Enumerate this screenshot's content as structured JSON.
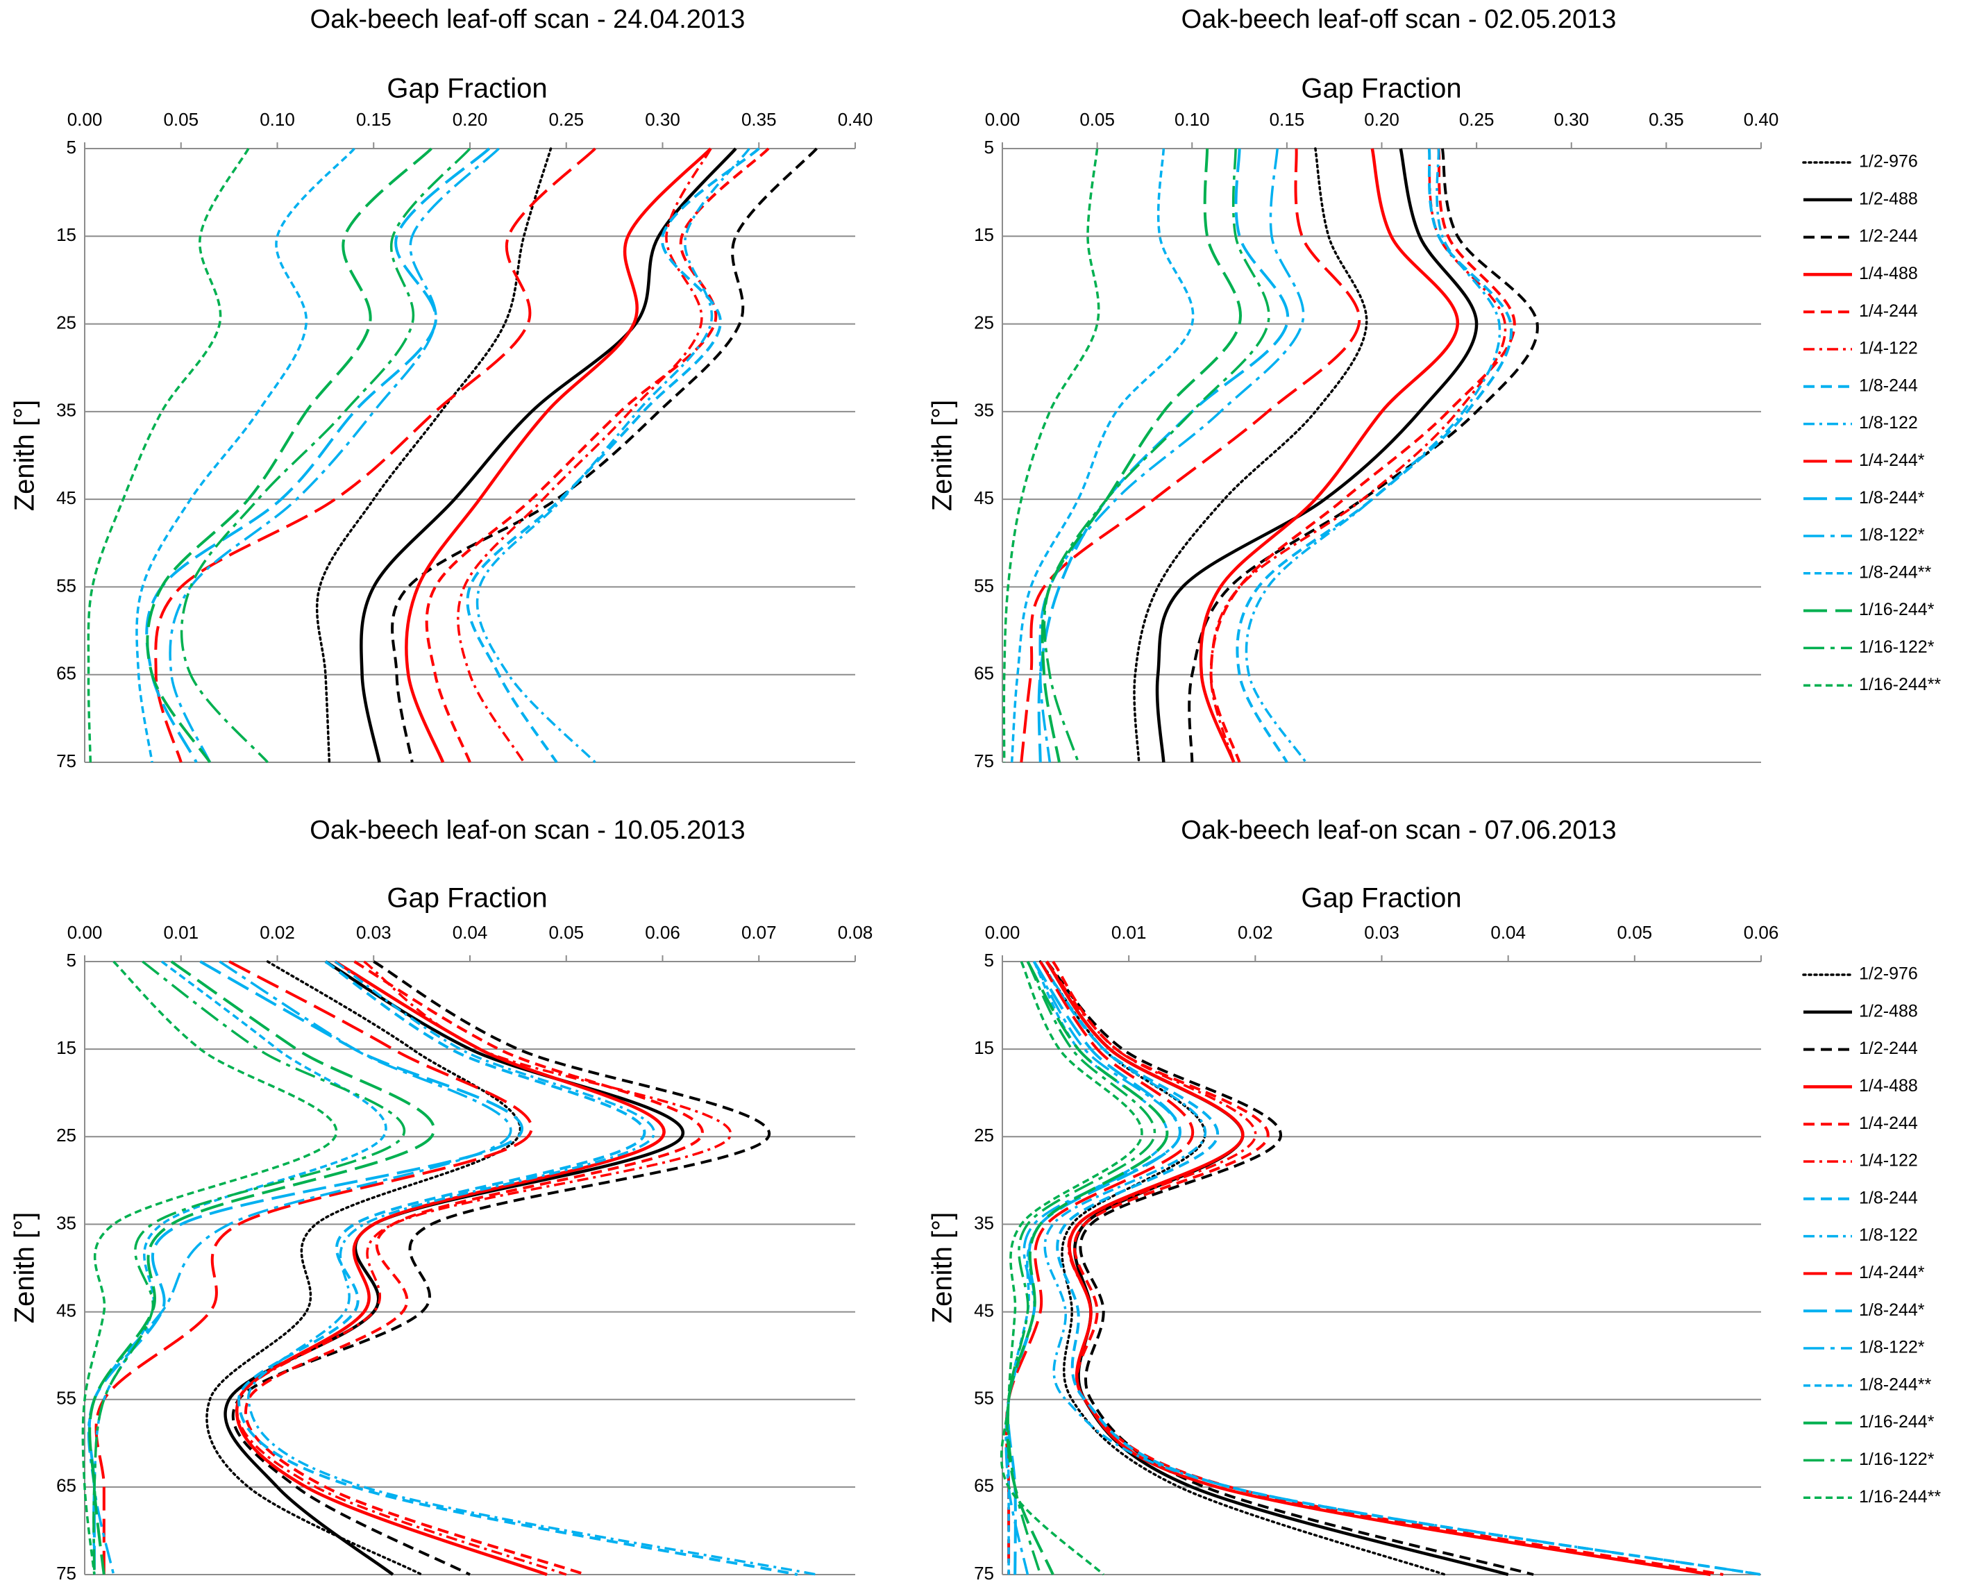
{
  "colors": {
    "black": "#000000",
    "red": "#ff0000",
    "blue": "#00b0f0",
    "green": "#00b050",
    "grid": "#8c8c8c"
  },
  "legend_entries": [
    {
      "name": "1/2-976",
      "color": "#000000",
      "dash": "dot"
    },
    {
      "name": "1/2-488",
      "color": "#000000",
      "dash": "solid"
    },
    {
      "name": "1/2-244",
      "color": "#000000",
      "dash": "dash"
    },
    {
      "name": "1/4-488",
      "color": "#ff0000",
      "dash": "solid"
    },
    {
      "name": "1/4-244",
      "color": "#ff0000",
      "dash": "dash"
    },
    {
      "name": "1/4-122",
      "color": "#ff0000",
      "dash": "dashdot"
    },
    {
      "name": "1/8-244",
      "color": "#00b0f0",
      "dash": "dash"
    },
    {
      "name": "1/8-122",
      "color": "#00b0f0",
      "dash": "dashdot"
    },
    {
      "name": "1/4-244*",
      "color": "#ff0000",
      "dash": "longdash"
    },
    {
      "name": "1/8-244*",
      "color": "#00b0f0",
      "dash": "longdash"
    },
    {
      "name": "1/8-122*",
      "color": "#00b0f0",
      "dash": "longdashdot"
    },
    {
      "name": "1/8-244**",
      "color": "#00b0f0",
      "dash": "shortdash"
    },
    {
      "name": "1/16-244*",
      "color": "#00b050",
      "dash": "longdash"
    },
    {
      "name": "1/16-122*",
      "color": "#00b050",
      "dash": "longdashdot"
    },
    {
      "name": "1/16-244**",
      "color": "#00b050",
      "dash": "shortdash"
    }
  ],
  "chart_data": [
    {
      "type": "line",
      "title": "Oak-beech leaf-off scan - 24.04.2013",
      "xlabel": "Gap Fraction",
      "ylabel": "Zenith [°]",
      "xlim": [
        0,
        0.4
      ],
      "ylim": [
        5,
        75
      ],
      "x_ticks": [
        "0.00",
        "0.05",
        "0.10",
        "0.15",
        "0.20",
        "0.25",
        "0.30",
        "0.35",
        "0.40"
      ],
      "y_ticks": [
        "5",
        "15",
        "25",
        "35",
        "45",
        "55",
        "65",
        "75"
      ],
      "legend": "none",
      "grid": "horizontal",
      "zenith": [
        5,
        15,
        25,
        35,
        45,
        55,
        65,
        75
      ],
      "series": [
        {
          "name": "1/2-976",
          "values": [
            0.242,
            0.228,
            0.218,
            0.185,
            0.15,
            0.122,
            0.125,
            0.127
          ]
        },
        {
          "name": "1/2-488",
          "values": [
            0.338,
            0.298,
            0.286,
            0.232,
            0.192,
            0.15,
            0.144,
            0.153
          ]
        },
        {
          "name": "1/2-244",
          "values": [
            0.38,
            0.338,
            0.34,
            0.298,
            0.245,
            0.168,
            0.162,
            0.17
          ]
        },
        {
          "name": "1/4-488",
          "values": [
            0.325,
            0.282,
            0.285,
            0.24,
            0.205,
            0.173,
            0.168,
            0.186
          ]
        },
        {
          "name": "1/4-244",
          "values": [
            0.355,
            0.31,
            0.327,
            0.278,
            0.232,
            0.182,
            0.182,
            0.2
          ]
        },
        {
          "name": "1/4-122",
          "values": [
            0.325,
            0.302,
            0.32,
            0.283,
            0.238,
            0.197,
            0.2,
            0.228
          ]
        },
        {
          "name": "1/8-244",
          "values": [
            0.35,
            0.3,
            0.33,
            0.29,
            0.247,
            0.2,
            0.215,
            0.245
          ]
        },
        {
          "name": "1/8-122",
          "values": [
            0.345,
            0.312,
            0.325,
            0.287,
            0.248,
            0.205,
            0.22,
            0.265
          ]
        },
        {
          "name": "1/4-244*",
          "values": [
            0.265,
            0.22,
            0.23,
            0.182,
            0.13,
            0.05,
            0.037,
            0.05
          ]
        },
        {
          "name": "1/8-244*",
          "values": [
            0.21,
            0.162,
            0.182,
            0.14,
            0.102,
            0.04,
            0.035,
            0.058
          ]
        },
        {
          "name": "1/8-122*",
          "values": [
            0.215,
            0.17,
            0.182,
            0.15,
            0.11,
            0.055,
            0.045,
            0.065
          ]
        },
        {
          "name": "1/8-244**",
          "values": [
            0.14,
            0.1,
            0.115,
            0.09,
            0.055,
            0.03,
            0.028,
            0.035
          ]
        },
        {
          "name": "1/16-244*",
          "values": [
            0.18,
            0.135,
            0.148,
            0.115,
            0.085,
            0.04,
            0.035,
            0.065
          ]
        },
        {
          "name": "1/16-122*",
          "values": [
            0.2,
            0.16,
            0.17,
            0.135,
            0.09,
            0.055,
            0.055,
            0.095
          ]
        },
        {
          "name": "1/16-244**",
          "values": [
            0.085,
            0.06,
            0.07,
            0.04,
            0.02,
            0.004,
            0.002,
            0.003
          ]
        }
      ]
    },
    {
      "type": "line",
      "title": "Oak-beech leaf-off scan - 02.05.2013",
      "xlabel": "Gap Fraction",
      "ylabel": "Zenith [°]",
      "xlim": [
        0,
        0.4
      ],
      "ylim": [
        5,
        75
      ],
      "x_ticks": [
        "0.00",
        "0.05",
        "0.10",
        "0.15",
        "0.20",
        "0.25",
        "0.30",
        "0.35",
        "0.40"
      ],
      "y_ticks": [
        "5",
        "15",
        "25",
        "35",
        "45",
        "55",
        "65",
        "75"
      ],
      "legend": "right",
      "grid": "horizontal",
      "zenith": [
        5,
        15,
        25,
        35,
        45,
        55,
        65,
        75
      ],
      "series": [
        {
          "name": "1/2-976",
          "values": [
            0.165,
            0.172,
            0.192,
            0.165,
            0.117,
            0.082,
            0.07,
            0.072
          ]
        },
        {
          "name": "1/2-488",
          "values": [
            0.21,
            0.22,
            0.25,
            0.22,
            0.17,
            0.095,
            0.082,
            0.085
          ]
        },
        {
          "name": "1/2-244",
          "values": [
            0.232,
            0.24,
            0.282,
            0.25,
            0.19,
            0.12,
            0.1,
            0.1
          ]
        },
        {
          "name": "1/4-488",
          "values": [
            0.195,
            0.205,
            0.24,
            0.2,
            0.165,
            0.115,
            0.105,
            0.122
          ]
        },
        {
          "name": "1/4-244",
          "values": [
            0.23,
            0.235,
            0.27,
            0.235,
            0.18,
            0.125,
            0.11,
            0.125
          ]
        },
        {
          "name": "1/4-122",
          "values": [
            0.225,
            0.23,
            0.265,
            0.24,
            0.19,
            0.125,
            0.11,
            0.122
          ]
        },
        {
          "name": "1/8-244",
          "values": [
            0.225,
            0.23,
            0.268,
            0.245,
            0.195,
            0.135,
            0.125,
            0.15
          ]
        },
        {
          "name": "1/8-122",
          "values": [
            0.23,
            0.232,
            0.262,
            0.243,
            0.195,
            0.14,
            0.13,
            0.16
          ]
        },
        {
          "name": "1/4-244*",
          "values": [
            0.155,
            0.158,
            0.188,
            0.14,
            0.08,
            0.022,
            0.015,
            0.01
          ]
        },
        {
          "name": "1/8-244*",
          "values": [
            0.125,
            0.125,
            0.15,
            0.1,
            0.055,
            0.03,
            0.02,
            0.02
          ]
        },
        {
          "name": "1/8-122*",
          "values": [
            0.145,
            0.142,
            0.158,
            0.115,
            0.06,
            0.025,
            0.02,
            0.025
          ]
        },
        {
          "name": "1/8-244**",
          "values": [
            0.085,
            0.083,
            0.1,
            0.06,
            0.04,
            0.015,
            0.008,
            0.005
          ]
        },
        {
          "name": "1/16-244*",
          "values": [
            0.108,
            0.108,
            0.125,
            0.085,
            0.055,
            0.025,
            0.022,
            0.03
          ]
        },
        {
          "name": "1/16-122*",
          "values": [
            0.123,
            0.123,
            0.14,
            0.1,
            0.055,
            0.025,
            0.025,
            0.04
          ]
        },
        {
          "name": "1/16-244**",
          "values": [
            0.05,
            0.045,
            0.05,
            0.025,
            0.01,
            0.003,
            0.001,
            0.001
          ]
        }
      ]
    },
    {
      "type": "line",
      "title": "Oak-beech leaf-on scan - 10.05.2013",
      "xlabel": "Gap Fraction",
      "ylabel": "Zenith [°]",
      "xlim": [
        0,
        0.08
      ],
      "ylim": [
        5,
        75
      ],
      "x_ticks": [
        "0.00",
        "0.01",
        "0.02",
        "0.03",
        "0.04",
        "0.05",
        "0.06",
        "0.07",
        "0.08"
      ],
      "y_ticks": [
        "5",
        "15",
        "25",
        "35",
        "45",
        "55",
        "65",
        "75"
      ],
      "legend": "none",
      "grid": "horizontal",
      "zenith": [
        5,
        15,
        25,
        35,
        45,
        55,
        65,
        75
      ],
      "series": [
        {
          "name": "1/2-976",
          "values": [
            0.019,
            0.034,
            0.045,
            0.024,
            0.023,
            0.013,
            0.017,
            0.035
          ]
        },
        {
          "name": "1/2-488",
          "values": [
            0.025,
            0.04,
            0.062,
            0.03,
            0.03,
            0.015,
            0.02,
            0.032
          ]
        },
        {
          "name": "1/2-244",
          "values": [
            0.03,
            0.045,
            0.071,
            0.036,
            0.035,
            0.016,
            0.022,
            0.04
          ]
        },
        {
          "name": "1/4-488",
          "values": [
            0.026,
            0.041,
            0.06,
            0.03,
            0.029,
            0.016,
            0.023,
            0.048
          ]
        },
        {
          "name": "1/4-244",
          "values": [
            0.028,
            0.043,
            0.064,
            0.032,
            0.033,
            0.017,
            0.025,
            0.052
          ]
        },
        {
          "name": "1/4-122",
          "values": [
            0.029,
            0.041,
            0.067,
            0.032,
            0.03,
            0.016,
            0.024,
            0.05
          ]
        },
        {
          "name": "1/8-244",
          "values": [
            0.025,
            0.038,
            0.058,
            0.028,
            0.028,
            0.016,
            0.028,
            0.074
          ]
        },
        {
          "name": "1/8-122",
          "values": [
            0.026,
            0.039,
            0.059,
            0.029,
            0.027,
            0.017,
            0.029,
            0.076
          ]
        },
        {
          "name": "1/4-244*",
          "values": [
            0.015,
            0.032,
            0.046,
            0.016,
            0.013,
            0.002,
            0.002,
            0.002
          ]
        },
        {
          "name": "1/8-244*",
          "values": [
            0.012,
            0.028,
            0.045,
            0.01,
            0.008,
            0.001,
            0.001,
            0.001
          ]
        },
        {
          "name": "1/8-122*",
          "values": [
            0.014,
            0.028,
            0.044,
            0.015,
            0.008,
            0.001,
            0.001,
            0.003
          ]
        },
        {
          "name": "1/8-244**",
          "values": [
            0.008,
            0.02,
            0.031,
            0.008,
            0.007,
            0.002,
            0.001,
            0.001
          ]
        },
        {
          "name": "1/16-244*",
          "values": [
            0.009,
            0.022,
            0.036,
            0.009,
            0.007,
            0.001,
            0.001,
            0.002
          ]
        },
        {
          "name": "1/16-122*",
          "values": [
            0.006,
            0.018,
            0.033,
            0.007,
            0.007,
            0.002,
            0.001,
            0.001
          ]
        },
        {
          "name": "1/16-244**",
          "values": [
            0.003,
            0.012,
            0.026,
            0.003,
            0.002,
            0.0,
            0.0,
            0.001
          ]
        }
      ]
    },
    {
      "type": "line",
      "title": "Oak-beech leaf-on scan - 07.06.2013",
      "xlabel": "Gap Fraction",
      "ylabel": "Zenith [°]",
      "xlim": [
        0,
        0.06
      ],
      "ylim": [
        5,
        75
      ],
      "x_ticks": [
        "0.00",
        "0.01",
        "0.02",
        "0.03",
        "0.04",
        "0.05",
        "0.06"
      ],
      "y_ticks": [
        "5",
        "15",
        "25",
        "35",
        "45",
        "55",
        "65",
        "75"
      ],
      "legend": "right",
      "grid": "horizontal",
      "zenith": [
        5,
        15,
        25,
        35,
        45,
        55,
        65,
        75
      ],
      "series": [
        {
          "name": "1/2-976",
          "values": [
            0.003,
            0.008,
            0.016,
            0.0055,
            0.0055,
            0.0055,
            0.014,
            0.035
          ]
        },
        {
          "name": "1/2-488",
          "values": [
            0.0035,
            0.0085,
            0.019,
            0.0065,
            0.007,
            0.0065,
            0.015,
            0.04
          ]
        },
        {
          "name": "1/2-244",
          "values": [
            0.0035,
            0.0095,
            0.022,
            0.007,
            0.008,
            0.007,
            0.016,
            0.042
          ]
        },
        {
          "name": "1/4-488",
          "values": [
            0.0035,
            0.0085,
            0.019,
            0.006,
            0.007,
            0.0065,
            0.017,
            0.056
          ]
        },
        {
          "name": "1/4-244",
          "values": [
            0.004,
            0.009,
            0.021,
            0.0065,
            0.0075,
            0.0065,
            0.018,
            0.057
          ]
        },
        {
          "name": "1/4-122",
          "values": [
            0.0035,
            0.009,
            0.02,
            0.006,
            0.007,
            0.0065,
            0.017,
            0.056
          ]
        },
        {
          "name": "1/8-244",
          "values": [
            0.003,
            0.008,
            0.017,
            0.005,
            0.006,
            0.0065,
            0.018,
            0.06
          ]
        },
        {
          "name": "1/8-122",
          "values": [
            0.003,
            0.008,
            0.016,
            0.004,
            0.005,
            0.005,
            0.018,
            0.06
          ]
        },
        {
          "name": "1/4-244*",
          "values": [
            0.003,
            0.0075,
            0.015,
            0.0035,
            0.003,
            0.0005,
            0.0005,
            0.0005
          ]
        },
        {
          "name": "1/8-244*",
          "values": [
            0.0025,
            0.007,
            0.014,
            0.003,
            0.0025,
            0.0005,
            0.001,
            0.001
          ]
        },
        {
          "name": "1/8-122*",
          "values": [
            0.0025,
            0.0065,
            0.014,
            0.0025,
            0.0025,
            0.0005,
            0.0005,
            0.002
          ]
        },
        {
          "name": "1/8-244**",
          "values": [
            0.0025,
            0.006,
            0.013,
            0.003,
            0.002,
            0.0005,
            0.0005,
            0.0005
          ]
        },
        {
          "name": "1/16-244*",
          "values": [
            0.002,
            0.006,
            0.013,
            0.003,
            0.0025,
            0.0005,
            0.001,
            0.004
          ]
        },
        {
          "name": "1/16-122*",
          "values": [
            0.002,
            0.0055,
            0.012,
            0.002,
            0.002,
            0.0005,
            0.001,
            0.003
          ]
        },
        {
          "name": "1/16-244**",
          "values": [
            0.0015,
            0.0045,
            0.011,
            0.0015,
            0.001,
            0.0005,
            0.0005,
            0.008
          ]
        }
      ]
    }
  ]
}
